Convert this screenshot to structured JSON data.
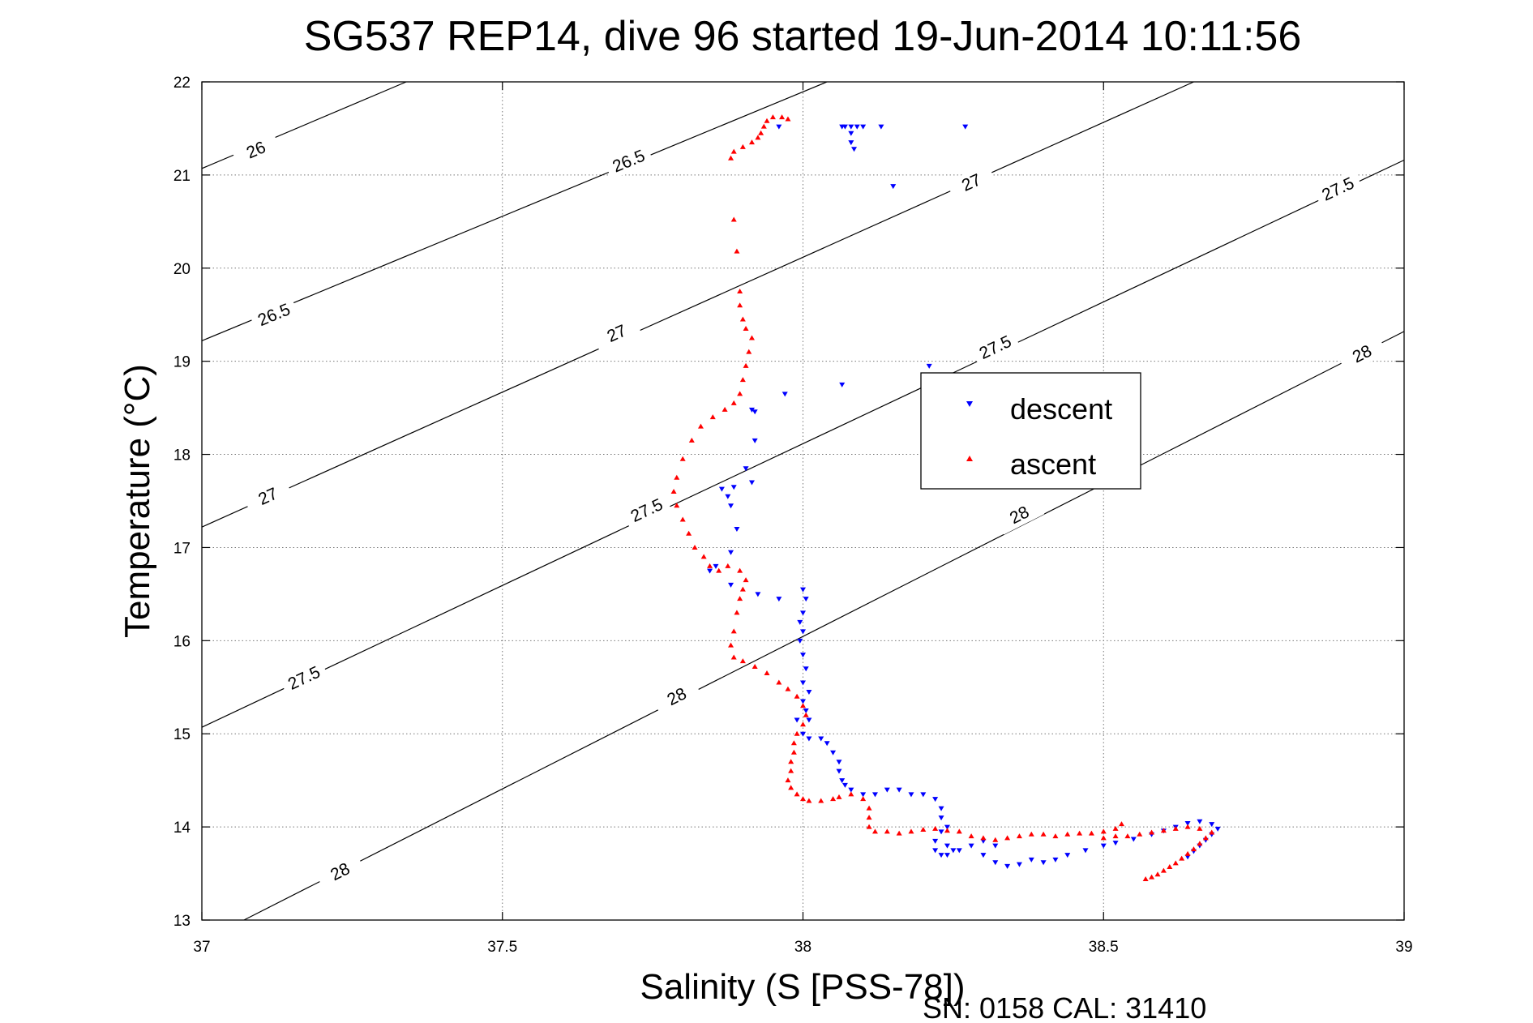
{
  "chart_data": {
    "type": "scatter",
    "title": "SG537 REP14, dive 96 started 19-Jun-2014 10:11:56",
    "xlabel": "Salinity (S [PSS-78])",
    "ylabel": "Temperature (°C)",
    "footer": "SN: 0158  CAL: 31410",
    "xlim": [
      37,
      39
    ],
    "ylim": [
      13,
      22
    ],
    "xticks": [
      37,
      37.5,
      38,
      38.5,
      39
    ],
    "xtick_labels": [
      "37",
      "37.5",
      "38",
      "38.5",
      "39"
    ],
    "yticks": [
      13,
      14,
      15,
      16,
      17,
      18,
      19,
      20,
      21,
      22
    ],
    "ytick_labels": [
      "13",
      "14",
      "15",
      "16",
      "17",
      "18",
      "19",
      "20",
      "21",
      "22"
    ],
    "grid": true,
    "legend_position": "center-right",
    "density_contours": [
      {
        "level": "26",
        "points": [
          [
            37.0,
            21.07
          ],
          [
            37.34,
            22.0
          ]
        ],
        "labels": [
          {
            "text": "26",
            "x": 37.09,
            "y": 21.27
          }
        ]
      },
      {
        "level": "26.5",
        "points": [
          [
            37.0,
            19.22
          ],
          [
            38.04,
            22.0
          ]
        ],
        "labels": [
          {
            "text": "26.5",
            "x": 37.12,
            "y": 19.5
          },
          {
            "text": "26.5",
            "x": 37.71,
            "y": 21.15
          }
        ]
      },
      {
        "level": "27",
        "points": [
          [
            37.0,
            17.22
          ],
          [
            38.65,
            22.0
          ]
        ],
        "labels": [
          {
            "text": "27",
            "x": 37.11,
            "y": 17.55
          },
          {
            "text": "27",
            "x": 37.69,
            "y": 19.3
          },
          {
            "text": "27",
            "x": 38.28,
            "y": 20.92
          }
        ]
      },
      {
        "level": "27.5",
        "points": [
          [
            37.0,
            15.07
          ],
          [
            39.0,
            21.16
          ]
        ],
        "labels": [
          {
            "text": "27.5",
            "x": 37.17,
            "y": 15.6
          },
          {
            "text": "27.5",
            "x": 37.74,
            "y": 17.4
          },
          {
            "text": "27.5",
            "x": 38.32,
            "y": 19.15
          },
          {
            "text": "27.5",
            "x": 38.89,
            "y": 20.85
          }
        ]
      },
      {
        "level": "28",
        "points": [
          [
            37.07,
            13.0
          ],
          [
            39.0,
            19.32
          ]
        ],
        "labels": [
          {
            "text": "28",
            "x": 37.23,
            "y": 13.52
          },
          {
            "text": "28",
            "x": 37.79,
            "y": 15.4
          },
          {
            "text": "28",
            "x": 38.36,
            "y": 17.35
          },
          {
            "text": "28",
            "x": 38.93,
            "y": 19.08
          }
        ]
      }
    ],
    "series": [
      {
        "name": "descent",
        "color": "#0000ff",
        "marker": "triangle-down",
        "points": [
          [
            38.27,
            21.52
          ],
          [
            38.13,
            21.52
          ],
          [
            38.1,
            21.52
          ],
          [
            38.09,
            21.52
          ],
          [
            38.08,
            21.52
          ],
          [
            38.07,
            21.52
          ],
          [
            38.065,
            21.52
          ],
          [
            38.08,
            21.45
          ],
          [
            38.08,
            21.35
          ],
          [
            38.085,
            21.28
          ],
          [
            38.15,
            20.88
          ],
          [
            37.96,
            21.52
          ],
          [
            38.21,
            18.95
          ],
          [
            38.065,
            18.75
          ],
          [
            37.97,
            18.65
          ],
          [
            37.915,
            18.48
          ],
          [
            37.92,
            18.46
          ],
          [
            37.92,
            18.15
          ],
          [
            37.905,
            17.85
          ],
          [
            37.915,
            17.7
          ],
          [
            37.885,
            17.65
          ],
          [
            37.865,
            17.63
          ],
          [
            37.875,
            17.55
          ],
          [
            37.88,
            17.45
          ],
          [
            37.89,
            17.2
          ],
          [
            37.88,
            16.95
          ],
          [
            37.855,
            16.8
          ],
          [
            37.845,
            16.75
          ],
          [
            37.88,
            16.6
          ],
          [
            37.925,
            16.5
          ],
          [
            37.96,
            16.45
          ],
          [
            38.0,
            16.55
          ],
          [
            38.005,
            16.45
          ],
          [
            38.0,
            16.3
          ],
          [
            37.995,
            16.2
          ],
          [
            38.0,
            16.1
          ],
          [
            37.995,
            16.0
          ],
          [
            38.0,
            15.85
          ],
          [
            38.005,
            15.7
          ],
          [
            38.0,
            15.55
          ],
          [
            38.01,
            15.45
          ],
          [
            38.0,
            15.35
          ],
          [
            38.005,
            15.25
          ],
          [
            38.01,
            15.15
          ],
          [
            37.99,
            15.15
          ],
          [
            38.0,
            15.0
          ],
          [
            38.01,
            14.95
          ],
          [
            38.03,
            14.95
          ],
          [
            38.04,
            14.9
          ],
          [
            38.05,
            14.8
          ],
          [
            38.06,
            14.7
          ],
          [
            38.06,
            14.6
          ],
          [
            38.065,
            14.5
          ],
          [
            38.07,
            14.45
          ],
          [
            38.08,
            14.4
          ],
          [
            38.1,
            14.35
          ],
          [
            38.12,
            14.35
          ],
          [
            38.14,
            14.4
          ],
          [
            38.16,
            14.4
          ],
          [
            38.18,
            14.35
          ],
          [
            38.2,
            14.35
          ],
          [
            38.22,
            14.3
          ],
          [
            38.23,
            14.2
          ],
          [
            38.23,
            14.1
          ],
          [
            38.24,
            14.0
          ],
          [
            38.23,
            13.95
          ],
          [
            38.22,
            13.85
          ],
          [
            38.24,
            13.8
          ],
          [
            38.25,
            13.75
          ],
          [
            38.23,
            13.7
          ],
          [
            38.22,
            13.75
          ],
          [
            38.24,
            13.7
          ],
          [
            38.26,
            13.75
          ],
          [
            38.28,
            13.8
          ],
          [
            38.3,
            13.85
          ],
          [
            38.32,
            13.8
          ],
          [
            38.3,
            13.7
          ],
          [
            38.32,
            13.62
          ],
          [
            38.34,
            13.58
          ],
          [
            38.36,
            13.6
          ],
          [
            38.38,
            13.65
          ],
          [
            38.4,
            13.62
          ],
          [
            38.42,
            13.65
          ],
          [
            38.44,
            13.7
          ],
          [
            38.47,
            13.75
          ],
          [
            38.5,
            13.8
          ],
          [
            38.52,
            13.83
          ],
          [
            38.55,
            13.87
          ],
          [
            38.58,
            13.92
          ],
          [
            38.6,
            13.96
          ],
          [
            38.62,
            14.0
          ],
          [
            38.64,
            14.04
          ],
          [
            38.66,
            14.06
          ],
          [
            38.68,
            14.03
          ],
          [
            38.69,
            13.98
          ],
          [
            38.68,
            13.92
          ],
          [
            38.67,
            13.86
          ],
          [
            38.66,
            13.8
          ],
          [
            38.65,
            13.74
          ],
          [
            38.64,
            13.68
          ]
        ]
      },
      {
        "name": "ascent",
        "color": "#ff0000",
        "marker": "triangle-up",
        "points": [
          [
            37.95,
            21.62
          ],
          [
            37.965,
            21.62
          ],
          [
            37.975,
            21.6
          ],
          [
            37.94,
            21.58
          ],
          [
            37.935,
            21.52
          ],
          [
            37.93,
            21.45
          ],
          [
            37.925,
            21.4
          ],
          [
            37.915,
            21.35
          ],
          [
            37.9,
            21.3
          ],
          [
            37.885,
            21.25
          ],
          [
            37.88,
            21.18
          ],
          [
            37.885,
            20.52
          ],
          [
            37.89,
            20.18
          ],
          [
            37.895,
            19.75
          ],
          [
            37.895,
            19.6
          ],
          [
            37.9,
            19.45
          ],
          [
            37.905,
            19.35
          ],
          [
            37.915,
            19.25
          ],
          [
            37.91,
            19.1
          ],
          [
            37.905,
            18.95
          ],
          [
            37.9,
            18.8
          ],
          [
            37.895,
            18.65
          ],
          [
            37.885,
            18.55
          ],
          [
            37.87,
            18.48
          ],
          [
            37.85,
            18.4
          ],
          [
            37.83,
            18.3
          ],
          [
            37.815,
            18.15
          ],
          [
            37.8,
            17.95
          ],
          [
            37.79,
            17.75
          ],
          [
            37.785,
            17.6
          ],
          [
            37.79,
            17.45
          ],
          [
            37.8,
            17.3
          ],
          [
            37.81,
            17.15
          ],
          [
            37.82,
            17.0
          ],
          [
            37.835,
            16.9
          ],
          [
            37.845,
            16.8
          ],
          [
            37.86,
            16.75
          ],
          [
            37.875,
            16.8
          ],
          [
            37.895,
            16.75
          ],
          [
            37.905,
            16.65
          ],
          [
            37.9,
            16.55
          ],
          [
            37.895,
            16.45
          ],
          [
            37.89,
            16.3
          ],
          [
            37.885,
            16.1
          ],
          [
            37.88,
            15.95
          ],
          [
            37.885,
            15.82
          ],
          [
            37.9,
            15.78
          ],
          [
            37.92,
            15.72
          ],
          [
            37.94,
            15.65
          ],
          [
            37.96,
            15.55
          ],
          [
            37.975,
            15.48
          ],
          [
            37.99,
            15.4
          ],
          [
            38.0,
            15.3
          ],
          [
            38.005,
            15.2
          ],
          [
            38.0,
            15.1
          ],
          [
            37.99,
            15.0
          ],
          [
            37.985,
            14.9
          ],
          [
            37.985,
            14.8
          ],
          [
            37.98,
            14.7
          ],
          [
            37.98,
            14.6
          ],
          [
            37.975,
            14.5
          ],
          [
            37.98,
            14.42
          ],
          [
            37.99,
            14.35
          ],
          [
            38.0,
            14.3
          ],
          [
            38.01,
            14.28
          ],
          [
            38.03,
            14.28
          ],
          [
            38.05,
            14.3
          ],
          [
            38.06,
            14.32
          ],
          [
            38.08,
            14.35
          ],
          [
            38.1,
            14.3
          ],
          [
            38.11,
            14.2
          ],
          [
            38.11,
            14.1
          ],
          [
            38.11,
            14.0
          ],
          [
            38.12,
            13.95
          ],
          [
            38.14,
            13.95
          ],
          [
            38.16,
            13.93
          ],
          [
            38.18,
            13.95
          ],
          [
            38.2,
            13.97
          ],
          [
            38.22,
            13.98
          ],
          [
            38.24,
            13.96
          ],
          [
            38.26,
            13.95
          ],
          [
            38.28,
            13.9
          ],
          [
            38.3,
            13.88
          ],
          [
            38.32,
            13.86
          ],
          [
            38.34,
            13.88
          ],
          [
            38.36,
            13.9
          ],
          [
            38.38,
            13.92
          ],
          [
            38.4,
            13.92
          ],
          [
            38.42,
            13.9
          ],
          [
            38.44,
            13.92
          ],
          [
            38.46,
            13.93
          ],
          [
            38.48,
            13.93
          ],
          [
            38.5,
            13.95
          ],
          [
            38.52,
            13.98
          ],
          [
            38.53,
            14.03
          ],
          [
            38.52,
            13.9
          ],
          [
            38.5,
            13.88
          ],
          [
            38.54,
            13.9
          ],
          [
            38.56,
            13.92
          ],
          [
            38.58,
            13.94
          ],
          [
            38.6,
            13.96
          ],
          [
            38.62,
            13.98
          ],
          [
            38.64,
            14.0
          ],
          [
            38.66,
            13.98
          ],
          [
            38.68,
            13.94
          ],
          [
            38.67,
            13.88
          ],
          [
            38.66,
            13.82
          ],
          [
            38.65,
            13.76
          ],
          [
            38.64,
            13.71
          ],
          [
            38.63,
            13.66
          ],
          [
            38.62,
            13.61
          ],
          [
            38.61,
            13.57
          ],
          [
            38.6,
            13.53
          ],
          [
            38.59,
            13.49
          ],
          [
            38.58,
            13.46
          ],
          [
            38.57,
            13.44
          ]
        ]
      }
    ]
  }
}
